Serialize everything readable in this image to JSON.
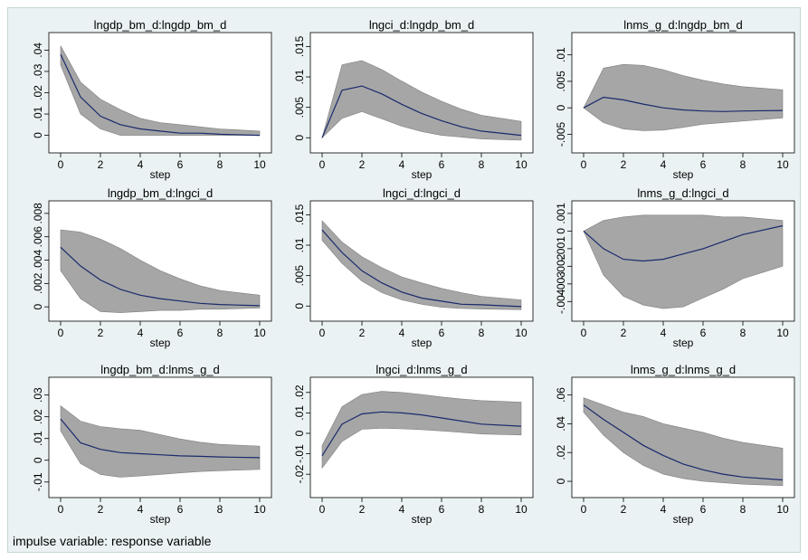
{
  "note": "impulse variable: response variable",
  "colors": {
    "background": "#eaf2f3",
    "plot_bg": "#ffffff",
    "band": "#a6a6a6",
    "line": "#1a2a6c"
  },
  "chart_data": [
    {
      "type": "line",
      "title": "lngdp_bm_d:lngdp_bm_d",
      "xlabel": "step",
      "x": [
        0,
        1,
        2,
        3,
        4,
        5,
        6,
        7,
        8,
        10
      ],
      "xticks": [
        0,
        2,
        4,
        6,
        8,
        10
      ],
      "ylim": [
        -0.004,
        0.044
      ],
      "yticks": [
        0,
        0.01,
        0.02,
        0.03,
        0.04
      ],
      "ytick_labels": [
        "0",
        ".01",
        ".02",
        ".03",
        ".04"
      ],
      "series": [
        {
          "values": [
            0.038,
            0.018,
            0.009,
            0.005,
            0.003,
            0.002,
            0.001,
            0.001,
            0.0005,
            0.0
          ]
        },
        {
          "values": [
            0.042,
            0.025,
            0.017,
            0.012,
            0.008,
            0.006,
            0.005,
            0.004,
            0.003,
            0.002
          ]
        },
        {
          "values": [
            0.033,
            0.01,
            0.003,
            0.0,
            0.0,
            0.0,
            0.0,
            0.0,
            0.0,
            0.0
          ]
        }
      ]
    },
    {
      "type": "line",
      "title": "lngci_d:lngdp_bm_d",
      "xlabel": "step",
      "x": [
        0,
        1,
        2,
        3,
        4,
        5,
        6,
        7,
        8,
        10
      ],
      "xticks": [
        0,
        2,
        4,
        6,
        8,
        10
      ],
      "ylim": [
        -0.001,
        0.0158
      ],
      "yticks": [
        0,
        0.005,
        0.01,
        0.015
      ],
      "ytick_labels": [
        "0",
        ".005",
        ".01",
        ".015"
      ],
      "series": [
        {
          "values": [
            0.0,
            0.0078,
            0.0085,
            0.0072,
            0.0055,
            0.004,
            0.0028,
            0.0018,
            0.0011,
            0.0004
          ]
        },
        {
          "values": [
            0.0,
            0.012,
            0.0127,
            0.0112,
            0.0093,
            0.0075,
            0.006,
            0.0047,
            0.0037,
            0.0027
          ]
        },
        {
          "values": [
            0.0,
            0.0032,
            0.0043,
            0.0031,
            0.0019,
            0.001,
            0.0004,
            0.0001,
            -0.0002,
            -0.0004
          ]
        }
      ]
    },
    {
      "type": "line",
      "title": "lnms_g_d:lngdp_bm_d",
      "xlabel": "step",
      "x": [
        0,
        1,
        2,
        3,
        4,
        5,
        6,
        7,
        8,
        10
      ],
      "xticks": [
        0,
        2,
        4,
        6,
        8,
        10
      ],
      "ylim": [
        -0.0068,
        0.0125
      ],
      "yticks": [
        -0.005,
        0,
        0.005,
        0.01
      ],
      "ytick_labels": [
        "-.005",
        "0",
        ".005",
        ".01"
      ],
      "series": [
        {
          "values": [
            0.0,
            0.002,
            0.0015,
            0.0007,
            0.0,
            -0.0004,
            -0.0006,
            -0.0007,
            -0.0006,
            -0.0005
          ]
        },
        {
          "values": [
            0.0,
            0.0075,
            0.0082,
            0.008,
            0.0072,
            0.0061,
            0.0052,
            0.0045,
            0.004,
            0.0034
          ]
        },
        {
          "values": [
            0.0,
            -0.0028,
            -0.004,
            -0.0043,
            -0.0042,
            -0.0037,
            -0.0031,
            -0.0028,
            -0.0025,
            -0.0019
          ]
        }
      ]
    },
    {
      "type": "line",
      "title": "lngdp_bm_d:lngci_d",
      "xlabel": "step",
      "x": [
        0,
        1,
        2,
        3,
        4,
        5,
        6,
        7,
        8,
        10
      ],
      "xticks": [
        0,
        2,
        4,
        6,
        8,
        10
      ],
      "ylim": [
        -0.00045,
        0.0083
      ],
      "yticks": [
        0,
        0.002,
        0.004,
        0.006,
        0.008
      ],
      "ytick_labels": [
        "0",
        ".002",
        ".004",
        ".006",
        ".008"
      ],
      "series": [
        {
          "values": [
            0.0051,
            0.0035,
            0.0023,
            0.0015,
            0.001,
            0.0007,
            0.0005,
            0.0003,
            0.0002,
            0.0001
          ]
        },
        {
          "values": [
            0.0066,
            0.0064,
            0.0058,
            0.005,
            0.004,
            0.0031,
            0.0024,
            0.0018,
            0.0014,
            0.001
          ]
        },
        {
          "values": [
            0.0031,
            0.0007,
            -0.0004,
            -0.0005,
            -0.0004,
            -0.0003,
            -0.0003,
            -0.0002,
            -0.0002,
            -0.0001
          ]
        }
      ]
    },
    {
      "type": "line",
      "title": "lngci_d:lngci_d",
      "xlabel": "step",
      "x": [
        0,
        1,
        2,
        3,
        4,
        5,
        6,
        7,
        8,
        10
      ],
      "xticks": [
        0,
        2,
        4,
        6,
        8,
        10
      ],
      "ylim": [
        -0.001,
        0.0158
      ],
      "yticks": [
        0,
        0.005,
        0.01,
        0.015
      ],
      "ytick_labels": [
        "0",
        ".005",
        ".01",
        ".015"
      ],
      "series": [
        {
          "values": [
            0.0125,
            0.0088,
            0.0058,
            0.0038,
            0.0023,
            0.0013,
            0.0008,
            0.0003,
            0.0002,
            -0.0001
          ]
        },
        {
          "values": [
            0.014,
            0.0105,
            0.0081,
            0.0063,
            0.0048,
            0.0038,
            0.0029,
            0.0022,
            0.0016,
            0.001
          ]
        },
        {
          "values": [
            0.0108,
            0.007,
            0.0041,
            0.0022,
            0.001,
            0.0003,
            -0.0002,
            -0.0004,
            -0.0005,
            -0.0006
          ]
        }
      ]
    },
    {
      "type": "line",
      "title": "lnms_g_d:lngci_d",
      "xlabel": "step",
      "x": [
        0,
        1,
        2,
        3,
        4,
        5,
        6,
        7,
        8,
        10
      ],
      "xticks": [
        0,
        2,
        4,
        6,
        8,
        10
      ],
      "ylim": [
        -0.0046,
        0.0012
      ],
      "yticks": [
        -0.004,
        -0.003,
        -0.002,
        -0.001,
        0,
        0.001
      ],
      "ytick_labels": [
        "-.004",
        "-.003",
        "-.002",
        "-.001",
        "0",
        ".001"
      ],
      "series": [
        {
          "values": [
            0.0,
            -0.001,
            -0.0016,
            -0.0017,
            -0.0016,
            -0.0013,
            -0.001,
            -0.0006,
            -0.0002,
            0.0003
          ]
        },
        {
          "values": [
            0.0,
            0.0006,
            0.0008,
            0.0009,
            0.0009,
            0.0009,
            0.0009,
            0.0008,
            0.0008,
            0.0006
          ]
        },
        {
          "values": [
            0.0,
            -0.0025,
            -0.0037,
            -0.0042,
            -0.0044,
            -0.0043,
            -0.0038,
            -0.0033,
            -0.0027,
            -0.002
          ]
        }
      ]
    },
    {
      "type": "line",
      "title": "lngdp_bm_d:lnms_g_d",
      "xlabel": "step",
      "x": [
        0,
        1,
        2,
        3,
        4,
        5,
        6,
        7,
        8,
        10
      ],
      "xticks": [
        0,
        2,
        4,
        6,
        8,
        10
      ],
      "ylim": [
        -0.013,
        0.034
      ],
      "yticks": [
        -0.01,
        0,
        0.01,
        0.02,
        0.03
      ],
      "ytick_labels": [
        "-.01",
        "0",
        ".01",
        ".02",
        ".03"
      ],
      "series": [
        {
          "values": [
            0.019,
            0.008,
            0.005,
            0.0035,
            0.003,
            0.0025,
            0.002,
            0.0018,
            0.0015,
            0.0012
          ]
        },
        {
          "values": [
            0.025,
            0.018,
            0.0155,
            0.0145,
            0.0138,
            0.0118,
            0.0098,
            0.0083,
            0.0073,
            0.0065
          ]
        },
        {
          "values": [
            0.0135,
            -0.0015,
            -0.0065,
            -0.0078,
            -0.0072,
            -0.0065,
            -0.0058,
            -0.0052,
            -0.0048,
            -0.0042
          ]
        }
      ]
    },
    {
      "type": "line",
      "title": "lngci_d:lnms_g_d",
      "xlabel": "step",
      "x": [
        0,
        1,
        2,
        3,
        4,
        5,
        6,
        7,
        8,
        10
      ],
      "xticks": [
        0,
        2,
        4,
        6,
        8,
        10
      ],
      "ylim": [
        -0.027,
        0.023
      ],
      "yticks": [
        -0.02,
        -0.01,
        0,
        0.01,
        0.02
      ],
      "ytick_labels": [
        "-.02",
        "-.01",
        "0",
        ".01",
        ".02"
      ],
      "series": [
        {
          "values": [
            -0.011,
            0.0045,
            0.0095,
            0.0105,
            0.01,
            0.009,
            0.0075,
            0.006,
            0.0045,
            0.0035
          ]
        },
        {
          "values": [
            -0.006,
            0.013,
            0.019,
            0.0205,
            0.02,
            0.019,
            0.0178,
            0.0168,
            0.016,
            0.0152
          ]
        },
        {
          "values": [
            -0.017,
            -0.004,
            0.002,
            0.0025,
            0.0022,
            0.0018,
            0.0012,
            0.0005,
            -0.0003,
            -0.0008
          ]
        }
      ]
    },
    {
      "type": "line",
      "title": "lnms_g_d:lnms_g_d",
      "xlabel": "step",
      "x": [
        0,
        1,
        2,
        3,
        4,
        5,
        6,
        7,
        8,
        10
      ],
      "xticks": [
        0,
        2,
        4,
        6,
        8,
        10
      ],
      "ylim": [
        -0.005,
        0.066
      ],
      "yticks": [
        0,
        0.02,
        0.04,
        0.06
      ],
      "ytick_labels": [
        "0",
        ".02",
        ".04",
        ".06"
      ],
      "series": [
        {
          "values": [
            0.053,
            0.043,
            0.034,
            0.025,
            0.018,
            0.012,
            0.008,
            0.005,
            0.003,
            0.001
          ]
        },
        {
          "values": [
            0.058,
            0.053,
            0.048,
            0.045,
            0.04,
            0.037,
            0.034,
            0.03,
            0.027,
            0.023
          ]
        },
        {
          "values": [
            0.048,
            0.032,
            0.02,
            0.011,
            0.005,
            0.002,
            0.0,
            -0.001,
            -0.002,
            -0.003
          ]
        }
      ]
    }
  ]
}
